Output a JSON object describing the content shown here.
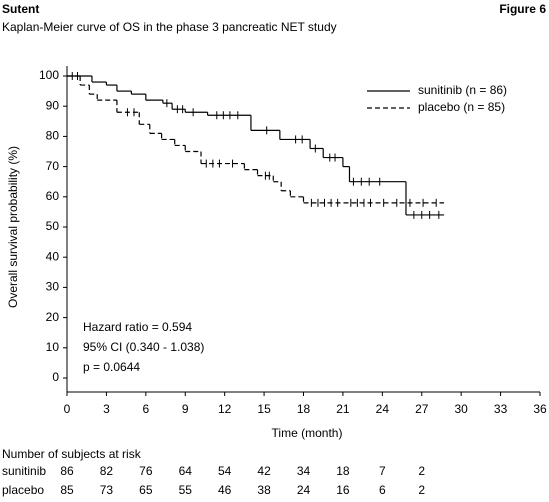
{
  "chart_data": {
    "type": "km",
    "brand": "Sutent",
    "figure_label": "Figure 6",
    "title": "Kaplan-Meier curve of OS in the phase 3 pancreatic NET study",
    "x_label": "Time (month)",
    "y_label": "Overall survival probability (%)",
    "xlim": [
      0,
      36
    ],
    "xticks": [
      0,
      3,
      6,
      9,
      12,
      15,
      18,
      21,
      24,
      27,
      30,
      33,
      36
    ],
    "ylim": [
      0,
      100
    ],
    "yticks": [
      0,
      10,
      20,
      30,
      40,
      50,
      60,
      70,
      80,
      90,
      100
    ],
    "series": [
      {
        "name": "sunitinib (n = 86)",
        "color": "#000000",
        "dashed": false,
        "x": [
          0,
          1.9,
          3.0,
          3.8,
          4.9,
          6.0,
          7.3,
          8.0,
          9.0,
          10.7,
          14.0,
          16.2,
          18.5,
          19.5,
          21.0,
          21.5,
          25.8
        ],
        "values": [
          100,
          98,
          97,
          95,
          94,
          92,
          91,
          89,
          88,
          87,
          82,
          79,
          76,
          73,
          70,
          65,
          54
        ],
        "end_x": 28.7,
        "censored_x": [
          0.4,
          0.8,
          7.6,
          8.4,
          8.8,
          9.6,
          11.4,
          11.9,
          12.4,
          13.0,
          15.2,
          17.4,
          17.9,
          18.9,
          20.0,
          20.4,
          21.8,
          22.4,
          23.0,
          23.8,
          26.4,
          27.0,
          27.6,
          28.3
        ]
      },
      {
        "name": "placebo (n = 85)",
        "color": "#000000",
        "dashed": true,
        "x": [
          0,
          1.0,
          1.7,
          2.3,
          3.8,
          5.5,
          6.3,
          7.2,
          8.2,
          9.0,
          10.2,
          13.5,
          14.5,
          15.7,
          16.3,
          17.0,
          18.0
        ],
        "values": [
          100,
          97,
          94,
          92,
          88,
          84,
          81,
          79,
          77,
          75,
          71,
          69,
          67,
          65,
          62,
          60,
          58
        ],
        "end_x": 28.7,
        "censored_x": [
          4.6,
          5.1,
          10.6,
          11.1,
          11.6,
          12.6,
          15.1,
          15.4,
          18.6,
          19.1,
          19.6,
          20.1,
          20.6,
          21.6,
          22.1,
          22.6,
          23.1,
          24.1,
          25.1,
          26.1,
          27.1,
          28.1
        ]
      }
    ],
    "annotations": [
      "Hazard ratio = 0.594",
      "95% CI (0.340 - 1.038)",
      "p = 0.0644"
    ],
    "risk_table": {
      "title": "Number of subjects at risk",
      "times": [
        0,
        3,
        6,
        9,
        12,
        15,
        18,
        21,
        24,
        27
      ],
      "rows": [
        {
          "name": "sunitinib",
          "values": [
            86,
            82,
            76,
            64,
            54,
            42,
            34,
            18,
            7,
            2
          ]
        },
        {
          "name": "placebo",
          "values": [
            85,
            73,
            65,
            55,
            46,
            38,
            24,
            16,
            6,
            2
          ]
        }
      ]
    }
  }
}
